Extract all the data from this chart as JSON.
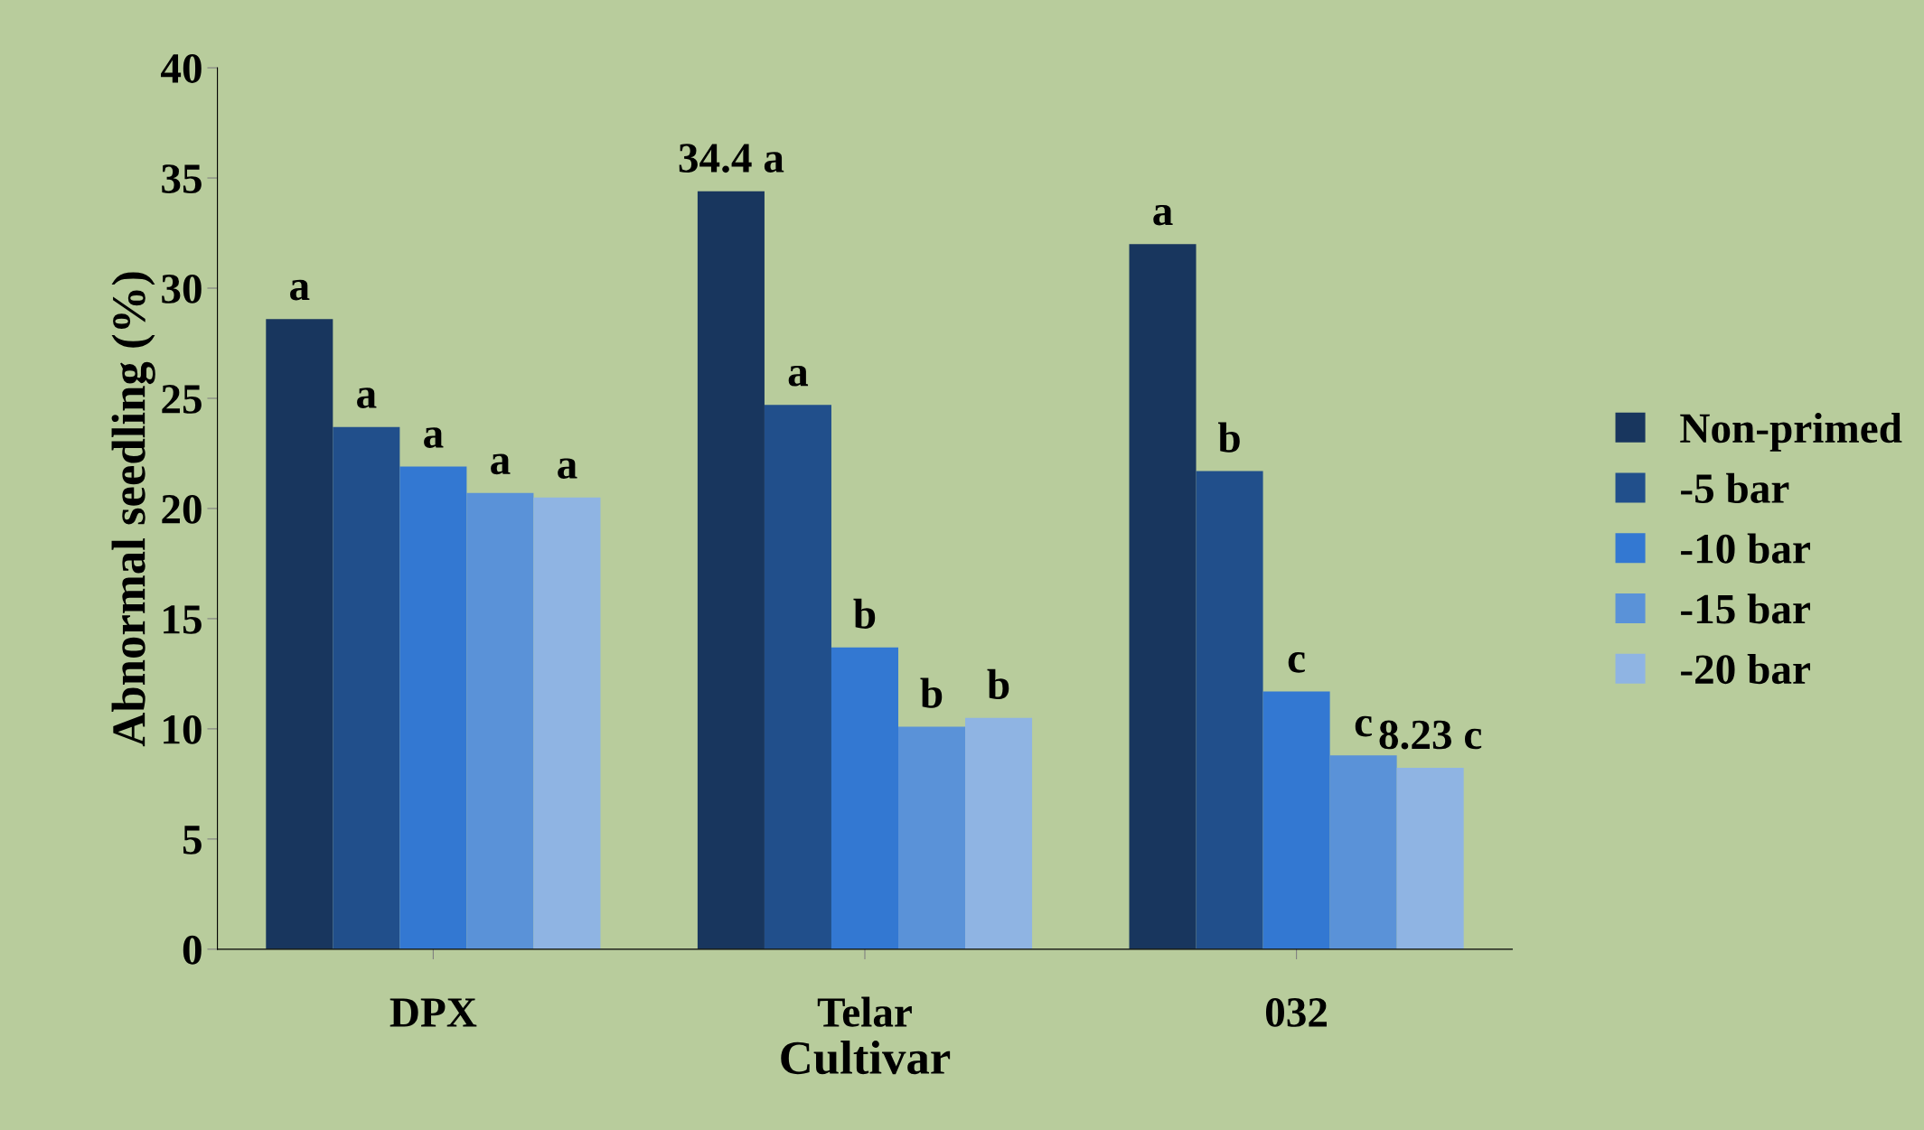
{
  "chart_data": {
    "type": "bar",
    "xlabel": "Cultivar",
    "ylabel": "Abnormal seedling (%)",
    "categories": [
      "DPX",
      "Telar",
      "032"
    ],
    "series": [
      {
        "name": "Non-primed",
        "color": "#18365e",
        "values": [
          28.6,
          34.4,
          32.0
        ],
        "value_labels": [
          "a",
          "34.4 a",
          "a"
        ]
      },
      {
        "name": "-5 bar",
        "color": "#214f8b",
        "values": [
          23.7,
          24.7,
          21.7
        ],
        "value_labels": [
          "a",
          "a",
          "b"
        ]
      },
      {
        "name": "-10 bar",
        "color": "#3378d2",
        "values": [
          21.9,
          13.7,
          11.7
        ],
        "value_labels": [
          "a",
          "b",
          "c"
        ]
      },
      {
        "name": "-15 bar",
        "color": "#5a92d8",
        "values": [
          20.7,
          10.1,
          8.8
        ],
        "value_labels": [
          "a",
          "b",
          "c"
        ]
      },
      {
        "name": "-20 bar",
        "color": "#8fb4e3",
        "values": [
          20.5,
          10.5,
          8.23
        ],
        "value_labels": [
          "a",
          "b",
          "8.23 c"
        ]
      }
    ],
    "ylim": [
      0,
      40
    ],
    "yticks": [
      0,
      5,
      10,
      15,
      20,
      25,
      30,
      35,
      40
    ],
    "grid": false,
    "legend": "right"
  }
}
